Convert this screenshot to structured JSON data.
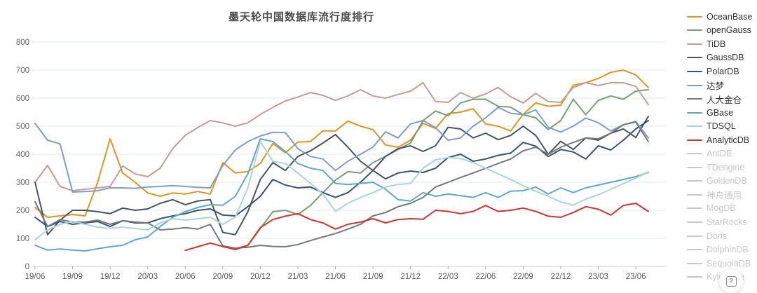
{
  "help": {
    "icon_glyph": "?"
  },
  "style": {
    "background": "#ffffff",
    "title_color": "#4c4c4c",
    "grid_color": "#e2ebf6",
    "axis_line_color": "#d0d0d0",
    "tick_color": "#aaaaaa",
    "axis_label_color": "#666666",
    "legend_active_text": "#333333",
    "legend_inactive_color": "#c8c8c8"
  },
  "chart_data": {
    "type": "line",
    "title": "墨天轮中国数据库流行度排行",
    "grid": "horizontal-only",
    "legend_position": "right",
    "ylim": [
      0,
      800
    ],
    "y_tick_step": 100,
    "x_tick_labels": [
      "19/06",
      "19/09",
      "19/12",
      "20/03",
      "20/06",
      "20/09",
      "20/12",
      "21/03",
      "21/06",
      "21/09",
      "21/12",
      "22/03",
      "22/06",
      "22/09",
      "22/12",
      "23/03",
      "23/06"
    ],
    "months": [
      "19/06",
      "19/07",
      "19/08",
      "19/09",
      "19/10",
      "19/11",
      "19/12",
      "20/01",
      "20/02",
      "20/03",
      "20/04",
      "20/05",
      "20/06",
      "20/07",
      "20/08",
      "20/09",
      "20/10",
      "20/11",
      "20/12",
      "21/01",
      "21/02",
      "21/03",
      "21/04",
      "21/05",
      "21/06",
      "21/07",
      "21/08",
      "21/09",
      "21/10",
      "21/11",
      "21/12",
      "22/01",
      "22/02",
      "22/03",
      "22/04",
      "22/05",
      "22/06",
      "22/07",
      "22/08",
      "22/09",
      "22/10",
      "22/11",
      "22/12",
      "23/01",
      "23/02",
      "23/03",
      "23/04",
      "23/05",
      "23/06",
      "23/07"
    ],
    "series": [
      {
        "name": "OceanBase",
        "color": "#e09422",
        "values": [
          210,
          175,
          180,
          185,
          180,
          300,
          455,
          333,
          300,
          262,
          250,
          262,
          258,
          267,
          258,
          370,
          333,
          338,
          367,
          438,
          405,
          443,
          445,
          483,
          483,
          518,
          500,
          488,
          433,
          425,
          450,
          510,
          492,
          545,
          550,
          562,
          508,
          500,
          483,
          542,
          583,
          571,
          575,
          646,
          655,
          670,
          692,
          700,
          683,
          638
        ]
      },
      {
        "name": "openGauss",
        "color": "#72a175",
        "values": [
          null,
          null,
          null,
          null,
          null,
          null,
          null,
          null,
          null,
          null,
          null,
          null,
          null,
          null,
          null,
          70,
          63,
          75,
          135,
          195,
          200,
          185,
          217,
          263,
          308,
          338,
          333,
          370,
          392,
          417,
          440,
          520,
          554,
          537,
          583,
          596,
          596,
          571,
          568,
          541,
          530,
          488,
          520,
          596,
          541,
          592,
          608,
          596,
          625,
          630
        ]
      },
      {
        "name": "TiDB",
        "color": "#c69c94",
        "values": [
          300,
          360,
          285,
          270,
          275,
          280,
          285,
          358,
          330,
          320,
          350,
          420,
          467,
          495,
          520,
          512,
          500,
          512,
          542,
          567,
          590,
          604,
          620,
          610,
          592,
          608,
          630,
          608,
          600,
          613,
          625,
          655,
          588,
          585,
          620,
          600,
          615,
          638,
          605,
          583,
          617,
          588,
          585,
          638,
          655,
          645,
          655,
          655,
          642,
          577
        ]
      },
      {
        "name": "GaussDB",
        "color": "#4a5460",
        "values": [
          300,
          113,
          165,
          200,
          200,
          195,
          188,
          208,
          200,
          205,
          225,
          238,
          220,
          233,
          238,
          121,
          113,
          195,
          310,
          370,
          342,
          392,
          412,
          440,
          470,
          425,
          375,
          342,
          392,
          420,
          430,
          410,
          430,
          496,
          490,
          458,
          475,
          452,
          467,
          500,
          467,
          400,
          446,
          417,
          458,
          450,
          475,
          490,
          460,
          535
        ]
      },
      {
        "name": "PolarDB",
        "color": "#3a5470",
        "values": [
          175,
          142,
          160,
          150,
          155,
          160,
          142,
          163,
          155,
          155,
          170,
          180,
          188,
          200,
          205,
          183,
          180,
          213,
          250,
          310,
          290,
          280,
          283,
          263,
          246,
          263,
          300,
          342,
          312,
          333,
          340,
          335,
          350,
          388,
          400,
          375,
          383,
          396,
          404,
          442,
          429,
          392,
          417,
          408,
          383,
          430,
          415,
          450,
          490,
          520
        ]
      },
      {
        "name": "达梦",
        "color": "#7e9ec8",
        "values": [
          510,
          450,
          437,
          265,
          267,
          270,
          280,
          280,
          278,
          283,
          285,
          288,
          285,
          282,
          280,
          360,
          415,
          445,
          465,
          478,
          477,
          420,
          392,
          383,
          342,
          375,
          400,
          425,
          480,
          458,
          508,
          520,
          495,
          450,
          458,
          500,
          530,
          567,
          546,
          541,
          558,
          496,
          479,
          500,
          529,
          512,
          483,
          505,
          517,
          458
        ]
      },
      {
        "name": "人大金仓",
        "color": "#787878",
        "values": [
          230,
          142,
          167,
          158,
          158,
          165,
          150,
          163,
          158,
          155,
          130,
          133,
          138,
          133,
          150,
          73,
          65,
          68,
          75,
          71,
          70,
          78,
          92,
          105,
          117,
          133,
          150,
          180,
          192,
          213,
          225,
          246,
          283,
          300,
          317,
          333,
          350,
          367,
          383,
          412,
          425,
          400,
          425,
          442,
          458,
          455,
          475,
          505,
          515,
          445
        ]
      },
      {
        "name": "GBase",
        "color": "#62a7c7",
        "values": [
          75,
          58,
          62,
          58,
          55,
          63,
          70,
          75,
          95,
          105,
          142,
          175,
          195,
          210,
          220,
          218,
          250,
          330,
          455,
          445,
          410,
          367,
          350,
          342,
          296,
          292,
          296,
          300,
          275,
          238,
          233,
          263,
          250,
          258,
          252,
          246,
          263,
          246,
          268,
          270,
          283,
          258,
          280,
          263,
          280,
          290,
          300,
          310,
          320,
          335
        ]
      },
      {
        "name": "TDSQL",
        "color": "#a8d5dc",
        "values": [
          95,
          130,
          150,
          160,
          150,
          140,
          135,
          140,
          135,
          130,
          155,
          170,
          165,
          170,
          175,
          150,
          175,
          280,
          445,
          375,
          367,
          333,
          296,
          258,
          196,
          225,
          246,
          263,
          283,
          292,
          296,
          350,
          380,
          388,
          385,
          370,
          350,
          330,
          310,
          288,
          268,
          250,
          230,
          218,
          240,
          255,
          275,
          295,
          315,
          337
        ]
      },
      {
        "name": "AnalyticDB",
        "color": "#d23430",
        "values": [
          null,
          null,
          null,
          null,
          null,
          null,
          null,
          null,
          null,
          null,
          null,
          null,
          57,
          70,
          83,
          71,
          60,
          75,
          138,
          167,
          179,
          188,
          167,
          155,
          133,
          150,
          158,
          170,
          155,
          167,
          170,
          168,
          200,
          196,
          188,
          196,
          217,
          196,
          200,
          208,
          196,
          179,
          175,
          192,
          213,
          204,
          183,
          217,
          225,
          196
        ]
      }
    ],
    "inactive_series": [
      "AntDB",
      "TDengine",
      "GoldenDB",
      "神舟通用",
      "MogDB",
      "StarRocks",
      "Doris",
      "DolphinDB",
      "SequoiaDB",
      "Kyligence"
    ]
  }
}
